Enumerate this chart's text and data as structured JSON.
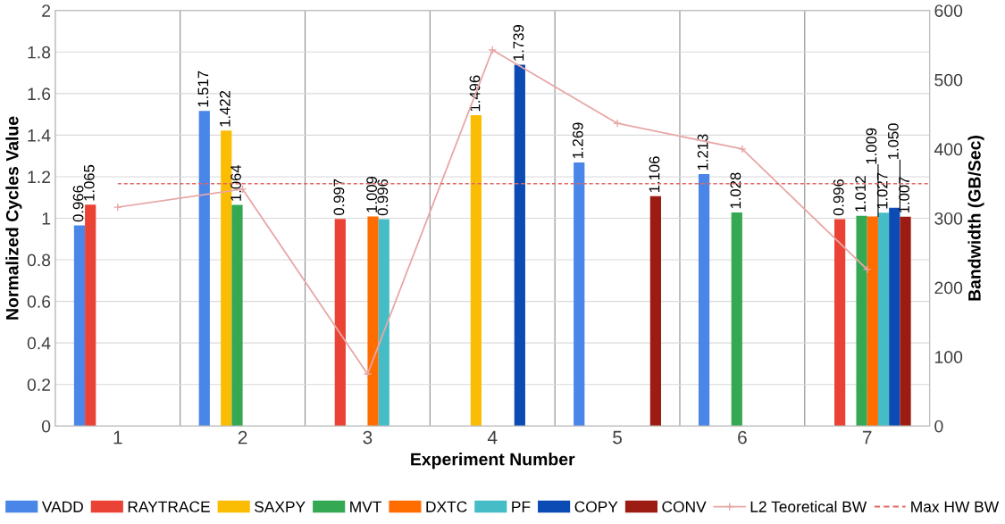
{
  "chart_data": {
    "type": "bar",
    "xlabel": "Experiment Number",
    "ylabel": "Normalized Cycles Value",
    "y2label": "Bandwidth (GB/Sec)",
    "categories": [
      "1",
      "2",
      "3",
      "4",
      "5",
      "6",
      "7"
    ],
    "series": [
      {
        "name": "VADD",
        "color": "#4a86e8",
        "values": [
          0.966,
          1.517,
          null,
          null,
          1.269,
          1.213,
          null
        ],
        "value_labels": [
          "0.966",
          "1.517",
          null,
          null,
          "1.269",
          "1.213",
          null
        ]
      },
      {
        "name": "RAYTRACE",
        "color": "#ea4335",
        "values": [
          1.065,
          null,
          0.997,
          null,
          null,
          null,
          0.996
        ],
        "value_labels": [
          "1.065",
          null,
          "0.997",
          null,
          null,
          null,
          "0.996"
        ]
      },
      {
        "name": "SAXPY",
        "color": "#fbbc04",
        "values": [
          null,
          1.422,
          null,
          1.496,
          null,
          null,
          null
        ],
        "value_labels": [
          null,
          "1.422",
          null,
          "1.496",
          null,
          null,
          null
        ]
      },
      {
        "name": "MVT",
        "color": "#34a853",
        "values": [
          null,
          1.064,
          null,
          null,
          null,
          1.028,
          1.012
        ],
        "value_labels": [
          null,
          "1.064",
          null,
          null,
          null,
          "1.028",
          "1.012"
        ]
      },
      {
        "name": "DXTC",
        "color": "#ff6d01",
        "values": [
          null,
          null,
          1.009,
          null,
          null,
          null,
          1.009
        ],
        "value_labels": [
          null,
          null,
          "1.009",
          null,
          null,
          null,
          "1.009"
        ]
      },
      {
        "name": "PF",
        "color": "#46bdc6",
        "values": [
          null,
          null,
          0.996,
          null,
          null,
          null,
          1.027
        ],
        "value_labels": [
          null,
          null,
          "0.996",
          null,
          null,
          null,
          "1.027"
        ]
      },
      {
        "name": "COPY",
        "color": "#0b4bb3",
        "values": [
          null,
          null,
          null,
          1.739,
          null,
          null,
          1.05
        ],
        "value_labels": [
          null,
          null,
          null,
          "1.739",
          null,
          null,
          "1.050"
        ]
      },
      {
        "name": "CONV",
        "color": "#9c1c13",
        "values": [
          null,
          null,
          null,
          null,
          1.106,
          null,
          1.007
        ],
        "value_labels": [
          null,
          null,
          null,
          null,
          "1.106",
          null,
          "1.007"
        ]
      },
      {
        "name": "L2 Teoretical BW",
        "type": "line",
        "axis": "y2",
        "color": "#e8a6a6",
        "marker": "cross",
        "values": [
          316,
          342,
          75,
          543,
          437,
          400,
          226
        ]
      }
    ],
    "ref_lines": [
      {
        "axis": "y2",
        "value": 350,
        "label": "Max HW BW",
        "color": "#e06666",
        "line_style": "dashed"
      }
    ],
    "ylim": [
      0,
      2
    ],
    "yticks": [
      {
        "value": 0,
        "label": "0"
      },
      {
        "value": 0.2,
        "label": "0.2"
      },
      {
        "value": 0.4,
        "label": "0.4"
      },
      {
        "value": 0.6,
        "label": "0.6"
      },
      {
        "value": 0.8,
        "label": "0.8"
      },
      1,
      1.2,
      1.4,
      1.6,
      1.8,
      2
    ],
    "y2lim": [
      0,
      600
    ],
    "y2ticks": [
      0,
      100,
      200,
      300,
      400,
      500,
      600
    ],
    "grid": true,
    "legend": "bottom"
  }
}
